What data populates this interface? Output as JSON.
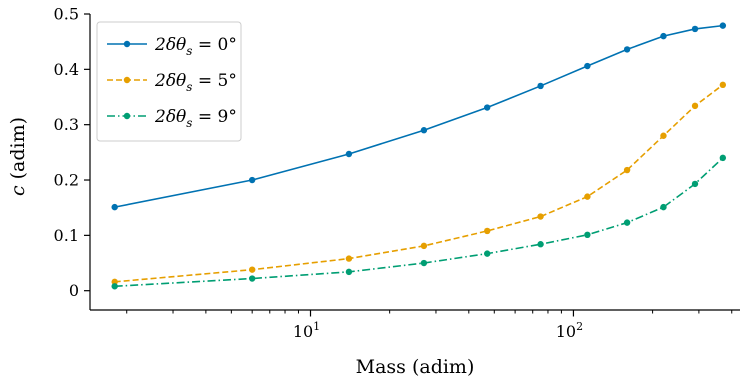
{
  "chart_data": {
    "type": "line",
    "xlabel": "Mass (adim)",
    "ylabel": "c (adim)",
    "ylabel_parts": {
      "symbol": "c",
      "unit": " (adim)"
    },
    "x_scale": "log",
    "xlim": [
      1.45,
      430
    ],
    "ylim": [
      -0.015,
      0.5
    ],
    "y_ticks": [
      0,
      0.1,
      0.2,
      0.3,
      0.4,
      0.5
    ],
    "y_tick_labels": [
      "0",
      "0.1",
      "0.2",
      "0.3",
      "0.4",
      "0.5"
    ],
    "x_major_ticks": [
      10,
      100
    ],
    "x_tick_labels": [
      {
        "base": "10",
        "exp": "1"
      },
      {
        "base": "10",
        "exp": "2"
      }
    ],
    "x_minor_ticks": [
      2,
      3,
      4,
      5,
      6,
      7,
      8,
      9,
      20,
      30,
      40,
      50,
      60,
      70,
      80,
      90,
      200,
      300,
      400
    ],
    "grid": false,
    "legend_position": "top-left",
    "series": [
      {
        "name": "2δθs = 0°",
        "legend_parts": {
          "lhs": "2δθ",
          "sub": "s",
          "rhs": " = 0°"
        },
        "color": "#0072B2",
        "style": "solid",
        "x": [
          1.8,
          6,
          14,
          27,
          47,
          75,
          113,
          160,
          220,
          290,
          370
        ],
        "y": [
          0.151,
          0.2,
          0.247,
          0.29,
          0.331,
          0.37,
          0.406,
          0.436,
          0.46,
          0.473,
          0.479
        ]
      },
      {
        "name": "2δθs = 5°",
        "legend_parts": {
          "lhs": "2δθ",
          "sub": "s",
          "rhs": " = 5°"
        },
        "color": "#E69F00",
        "style": "dashed",
        "x": [
          1.8,
          6,
          14,
          27,
          47,
          75,
          113,
          160,
          220,
          290,
          370
        ],
        "y": [
          0.016,
          0.038,
          0.058,
          0.081,
          0.108,
          0.134,
          0.17,
          0.218,
          0.28,
          0.334,
          0.372
        ]
      },
      {
        "name": "2δθs = 9°",
        "legend_parts": {
          "lhs": "2δθ",
          "sub": "s",
          "rhs": " = 9°"
        },
        "color": "#009E73",
        "style": "dashdot",
        "x": [
          1.8,
          6,
          14,
          27,
          47,
          75,
          113,
          160,
          220,
          290,
          370
        ],
        "y": [
          0.008,
          0.022,
          0.034,
          0.05,
          0.067,
          0.084,
          0.101,
          0.123,
          0.151,
          0.193,
          0.24
        ]
      }
    ]
  }
}
